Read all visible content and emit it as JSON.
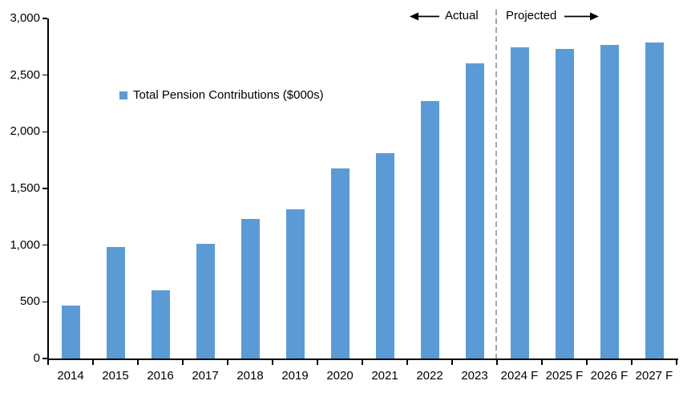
{
  "chart_data": {
    "type": "bar",
    "title": "",
    "xlabel": "",
    "ylabel": "",
    "categories": [
      "2014",
      "2015",
      "2016",
      "2017",
      "2018",
      "2019",
      "2020",
      "2021",
      "2022",
      "2023",
      "2024 F",
      "2025 F",
      "2026 F",
      "2027 F"
    ],
    "series": [
      {
        "name": "Total Pension Contributions ($000s)",
        "values": [
          470,
          985,
          605,
          1015,
          1230,
          1315,
          1680,
          1810,
          2270,
          2605,
          2745,
          2735,
          2765,
          2790
        ]
      }
    ],
    "ylim": [
      0,
      3000
    ],
    "ytick_step": 500,
    "ytick_labels": [
      "0",
      "500",
      "1,000",
      "1,500",
      "2,000",
      "2,500",
      "3,000"
    ],
    "grid": false,
    "bar_color": "#5B9BD5",
    "axis_color": "#000000",
    "legend": {
      "label": "Total Pension Contributions ($000s)",
      "position": "inside-upper-left",
      "swatch_color": "#5B9BD5"
    },
    "divider": {
      "style": "dashed",
      "color": "#A6A6A6",
      "between": [
        "2023",
        "2024 F"
      ],
      "label_left": "Actual",
      "label_right": "Projected",
      "arrow_left": "left-arrow",
      "arrow_right": "right-arrow"
    }
  }
}
